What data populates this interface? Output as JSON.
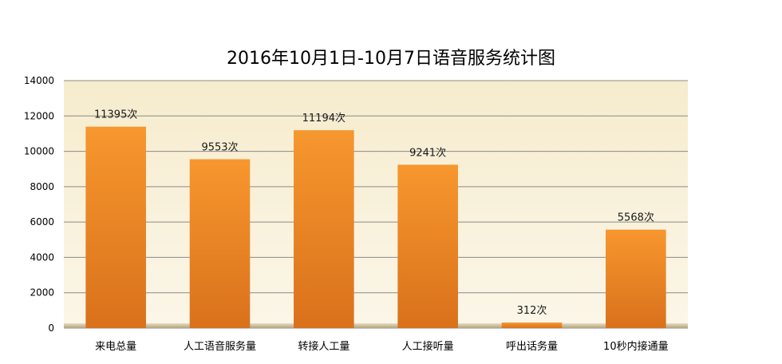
{
  "chart_data": {
    "type": "bar",
    "title": "2016年10月1日-10月7日语音服务统计图",
    "categories": [
      "来电总量",
      "人工语音服务量",
      "转接人工量",
      "人工接听量",
      "呼出话务量",
      "10秒内接通量"
    ],
    "values": [
      11395,
      9553,
      11194,
      9241,
      312,
      5568
    ],
    "data_labels": [
      "11395次",
      "9553次",
      "11194次",
      "9241次",
      "312次",
      "5568次"
    ],
    "ylim": [
      0,
      14000
    ],
    "yticks": [
      0,
      2000,
      4000,
      6000,
      8000,
      10000,
      12000,
      14000
    ],
    "ytick_labels": [
      "0",
      "2000",
      "4000",
      "6000",
      "8000",
      "10000",
      "12000",
      "14000"
    ],
    "grid": true,
    "legend": "none",
    "colors": {
      "bar_top": "#f7972e",
      "bar_bottom": "#d9711b",
      "plot_bg_top": "#f6eccd",
      "plot_bg_bottom": "#fbf6e8",
      "floor": "#b3a47c"
    }
  }
}
